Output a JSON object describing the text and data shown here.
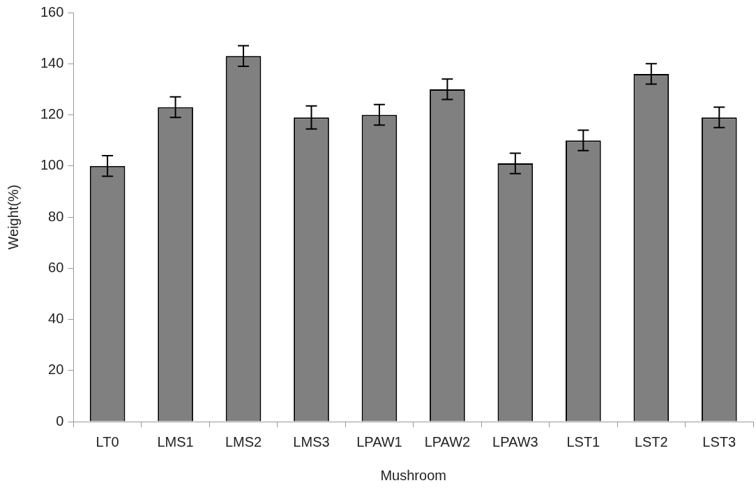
{
  "chart_data": {
    "type": "bar",
    "xlabel": "Mushroom",
    "ylabel": "Weight(%)",
    "categories": [
      "LT0",
      "LMS1",
      "LMS2",
      "LMS3",
      "LPAW1",
      "LPAW2",
      "LPAW3",
      "LST1",
      "LST2",
      "LST3"
    ],
    "values": [
      100,
      123,
      143,
      119,
      120,
      130,
      101,
      110,
      136,
      119
    ],
    "errors": [
      4,
      4,
      4,
      4.5,
      4,
      4,
      4,
      4,
      4,
      4
    ],
    "color": "#808080",
    "ylim": [
      0,
      160
    ],
    "yticks": [
      0,
      20,
      40,
      60,
      80,
      100,
      120,
      140,
      160
    ],
    "legend": false
  }
}
